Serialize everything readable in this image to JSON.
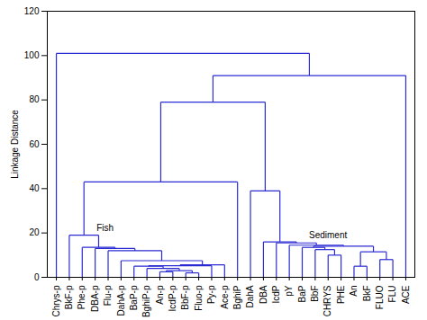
{
  "chart_data": {
    "type": "dendrogram",
    "ylabel": "Linkage Distance",
    "ylim": [
      0,
      120
    ],
    "yticks": [
      0,
      20,
      40,
      60,
      80,
      100,
      120
    ],
    "color": "#2b2bd4",
    "tree": {
      "height": 101,
      "children": [
        "Chrys-p",
        {
          "height": 91,
          "children": [
            {
              "height": 79,
              "children": [
                {
                  "height": 43,
                  "children": [
                    {
                      "height": 19,
                      "label": "Fish",
                      "children": [
                        "BkF-p",
                        {
                          "height": 13.5,
                          "children": [
                            "Phe-p",
                            {
                              "height": 13,
                              "children": [
                                "DBA-p",
                                {
                                  "height": 12,
                                  "children": [
                                    "Flu-p",
                                    {
                                      "height": 7.5,
                                      "children": [
                                        "DahA-p",
                                        {
                                          "height": 5.6,
                                          "children": [
                                            {
                                              "height": 5.2,
                                              "children": [
                                                {
                                                  "height": 5,
                                                  "children": [
                                                    "BaP-p",
                                                    {
                                                      "height": 4,
                                                      "children": [
                                                        "BghiP-p",
                                                        {
                                                          "height": 3,
                                                          "children": [
                                                            {
                                                              "height": 2.5,
                                                              "children": [
                                                                "An-p",
                                                                "IcdP-p"
                                                              ]
                                                            },
                                                            {
                                                              "height": 2,
                                                              "children": [
                                                                "BbF-p",
                                                                "Fluo-p"
                                                              ]
                                                            }
                                                          ]
                                                        }
                                                      ]
                                                    }
                                                  ]
                                                },
                                                "Py-p"
                                              ]
                                            },
                                            "Ace-p"
                                          ]
                                        }
                                      ]
                                    }
                                  ]
                                }
                              ]
                            }
                          ]
                        }
                      ]
                    },
                    "BghiP"
                  ]
                },
                {
                  "height": 39,
                  "children": [
                    "DahA",
                    {
                      "height": 16,
                      "children": [
                        "DBA",
                        {
                          "height": 15.5,
                          "label": "Sediment",
                          "children": [
                            "IcdP",
                            {
                              "height": 14.5,
                              "children": [
                                "pY",
                                {
                                  "height": 14,
                                  "children": [
                                    {
                                      "height": 13.5,
                                      "children": [
                                        "BaP",
                                        {
                                          "height": 12.5,
                                          "children": [
                                            "BbF",
                                            {
                                              "height": 10,
                                              "children": [
                                                "CHRYS",
                                                "PHE"
                                              ]
                                            }
                                          ]
                                        }
                                      ]
                                    },
                                    {
                                      "height": 11.5,
                                      "children": [
                                        {
                                          "height": 5,
                                          "children": [
                                            "An",
                                            "BkF"
                                          ]
                                        },
                                        {
                                          "height": 8,
                                          "children": [
                                            "FLUO",
                                            "FLU"
                                          ]
                                        }
                                      ]
                                    }
                                  ]
                                }
                              ]
                            }
                          ]
                        }
                      ]
                    }
                  ]
                }
              ]
            },
            "ACE"
          ]
        }
      ]
    }
  }
}
